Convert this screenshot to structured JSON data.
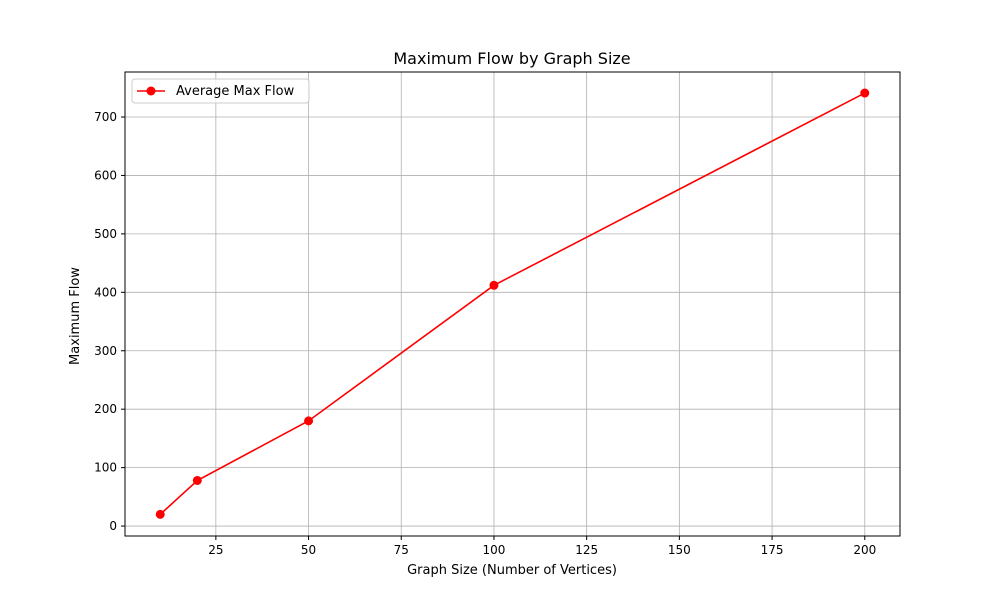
{
  "chart_data": {
    "type": "line",
    "title": "Maximum Flow by Graph Size",
    "xlabel": "Graph Size (Number of Vertices)",
    "ylabel": "Maximum Flow",
    "xlim": [
      0.5,
      209.5
    ],
    "ylim": [
      -17,
      777
    ],
    "xticks": [
      25,
      50,
      75,
      100,
      125,
      150,
      175,
      200
    ],
    "yticks": [
      0,
      100,
      200,
      300,
      400,
      500,
      600,
      700
    ],
    "grid": true,
    "legend_position": "upper-left",
    "series": [
      {
        "name": "Average Max Flow",
        "color": "#ff0000",
        "marker": "circle",
        "x": [
          10,
          20,
          50,
          100,
          200
        ],
        "y": [
          20,
          78,
          180,
          412,
          741
        ]
      }
    ]
  }
}
